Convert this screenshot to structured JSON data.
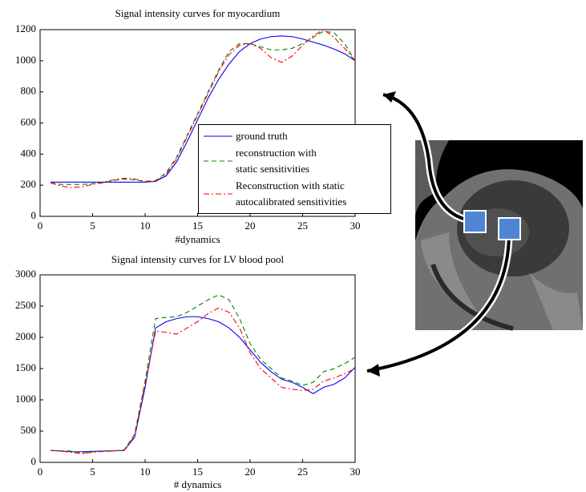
{
  "chart_data": [
    {
      "type": "line",
      "title": "Signal intensity curves for myocardium",
      "x_label": "#dynamics",
      "x": [
        1,
        2,
        3,
        4,
        5,
        6,
        7,
        8,
        9,
        10,
        11,
        12,
        13,
        14,
        15,
        16,
        17,
        18,
        19,
        20,
        21,
        22,
        23,
        24,
        25,
        26,
        27,
        28,
        29,
        30
      ],
      "xlim": [
        0,
        30
      ],
      "xticks": [
        0,
        5,
        10,
        15,
        20,
        25,
        30
      ],
      "ylim": [
        0,
        1200
      ],
      "yticks": [
        0,
        200,
        400,
        600,
        800,
        1000,
        1200
      ],
      "legend": true,
      "series": [
        {
          "name": "ground truth",
          "color": "#0000ff",
          "style": "solid",
          "values": [
            220,
            220,
            220,
            220,
            220,
            220,
            220,
            220,
            220,
            220,
            225,
            260,
            350,
            480,
            620,
            760,
            880,
            980,
            1060,
            1110,
            1140,
            1155,
            1160,
            1155,
            1140,
            1120,
            1100,
            1075,
            1045,
            1000
          ]
        },
        {
          "name": "reconstruction with\nstatic sensitivities",
          "color": "#008000",
          "style": "dashed",
          "values": [
            215,
            205,
            205,
            205,
            210,
            215,
            230,
            240,
            235,
            225,
            230,
            280,
            380,
            520,
            660,
            800,
            940,
            1060,
            1110,
            1110,
            1090,
            1070,
            1070,
            1080,
            1110,
            1150,
            1190,
            1180,
            1110,
            1000
          ]
        },
        {
          "name": "Reconstruction with static\nautocalibrated sensitivities",
          "color": "#ff0000",
          "style": "dashdot",
          "values": [
            215,
            195,
            185,
            190,
            205,
            220,
            235,
            245,
            240,
            225,
            225,
            270,
            370,
            510,
            650,
            790,
            930,
            1040,
            1100,
            1110,
            1080,
            1020,
            990,
            1030,
            1100,
            1160,
            1200,
            1150,
            1080,
            1000
          ]
        }
      ]
    },
    {
      "type": "line",
      "title": "Signal intensity curves for LV blood pool",
      "x_label": "# dynamics",
      "x": [
        1,
        2,
        3,
        4,
        5,
        6,
        7,
        8,
        9,
        10,
        11,
        12,
        13,
        14,
        15,
        16,
        17,
        18,
        19,
        20,
        21,
        22,
        23,
        24,
        25,
        26,
        27,
        28,
        29,
        30
      ],
      "xlim": [
        0,
        30
      ],
      "xticks": [
        0,
        5,
        10,
        15,
        20,
        25,
        30
      ],
      "ylim": [
        0,
        3000
      ],
      "yticks": [
        0,
        500,
        1000,
        1500,
        2000,
        2500,
        3000
      ],
      "series": [
        {
          "name": "ground truth",
          "color": "#0000ff",
          "style": "solid",
          "values": [
            190,
            180,
            170,
            170,
            175,
            180,
            185,
            190,
            400,
            1200,
            2150,
            2250,
            2300,
            2330,
            2330,
            2300,
            2250,
            2150,
            2000,
            1800,
            1600,
            1450,
            1330,
            1280,
            1200,
            1100,
            1200,
            1250,
            1350,
            1520
          ]
        },
        {
          "name": "reconstruction with\nstatic sensitivities",
          "color": "#008000",
          "style": "dashed",
          "values": [
            190,
            185,
            180,
            150,
            170,
            175,
            180,
            200,
            450,
            1300,
            2300,
            2320,
            2330,
            2400,
            2500,
            2600,
            2680,
            2600,
            2300,
            1900,
            1650,
            1500,
            1350,
            1300,
            1230,
            1280,
            1450,
            1500,
            1580,
            1680
          ]
        },
        {
          "name": "Reconstruction with static\nautocalibrated sensitivities",
          "color": "#ff0000",
          "style": "dashdot",
          "values": [
            190,
            180,
            160,
            140,
            160,
            175,
            185,
            190,
            420,
            1250,
            2100,
            2080,
            2050,
            2150,
            2250,
            2380,
            2470,
            2400,
            2150,
            1750,
            1500,
            1350,
            1200,
            1170,
            1150,
            1170,
            1300,
            1350,
            1420,
            1500
          ]
        }
      ]
    }
  ]
}
